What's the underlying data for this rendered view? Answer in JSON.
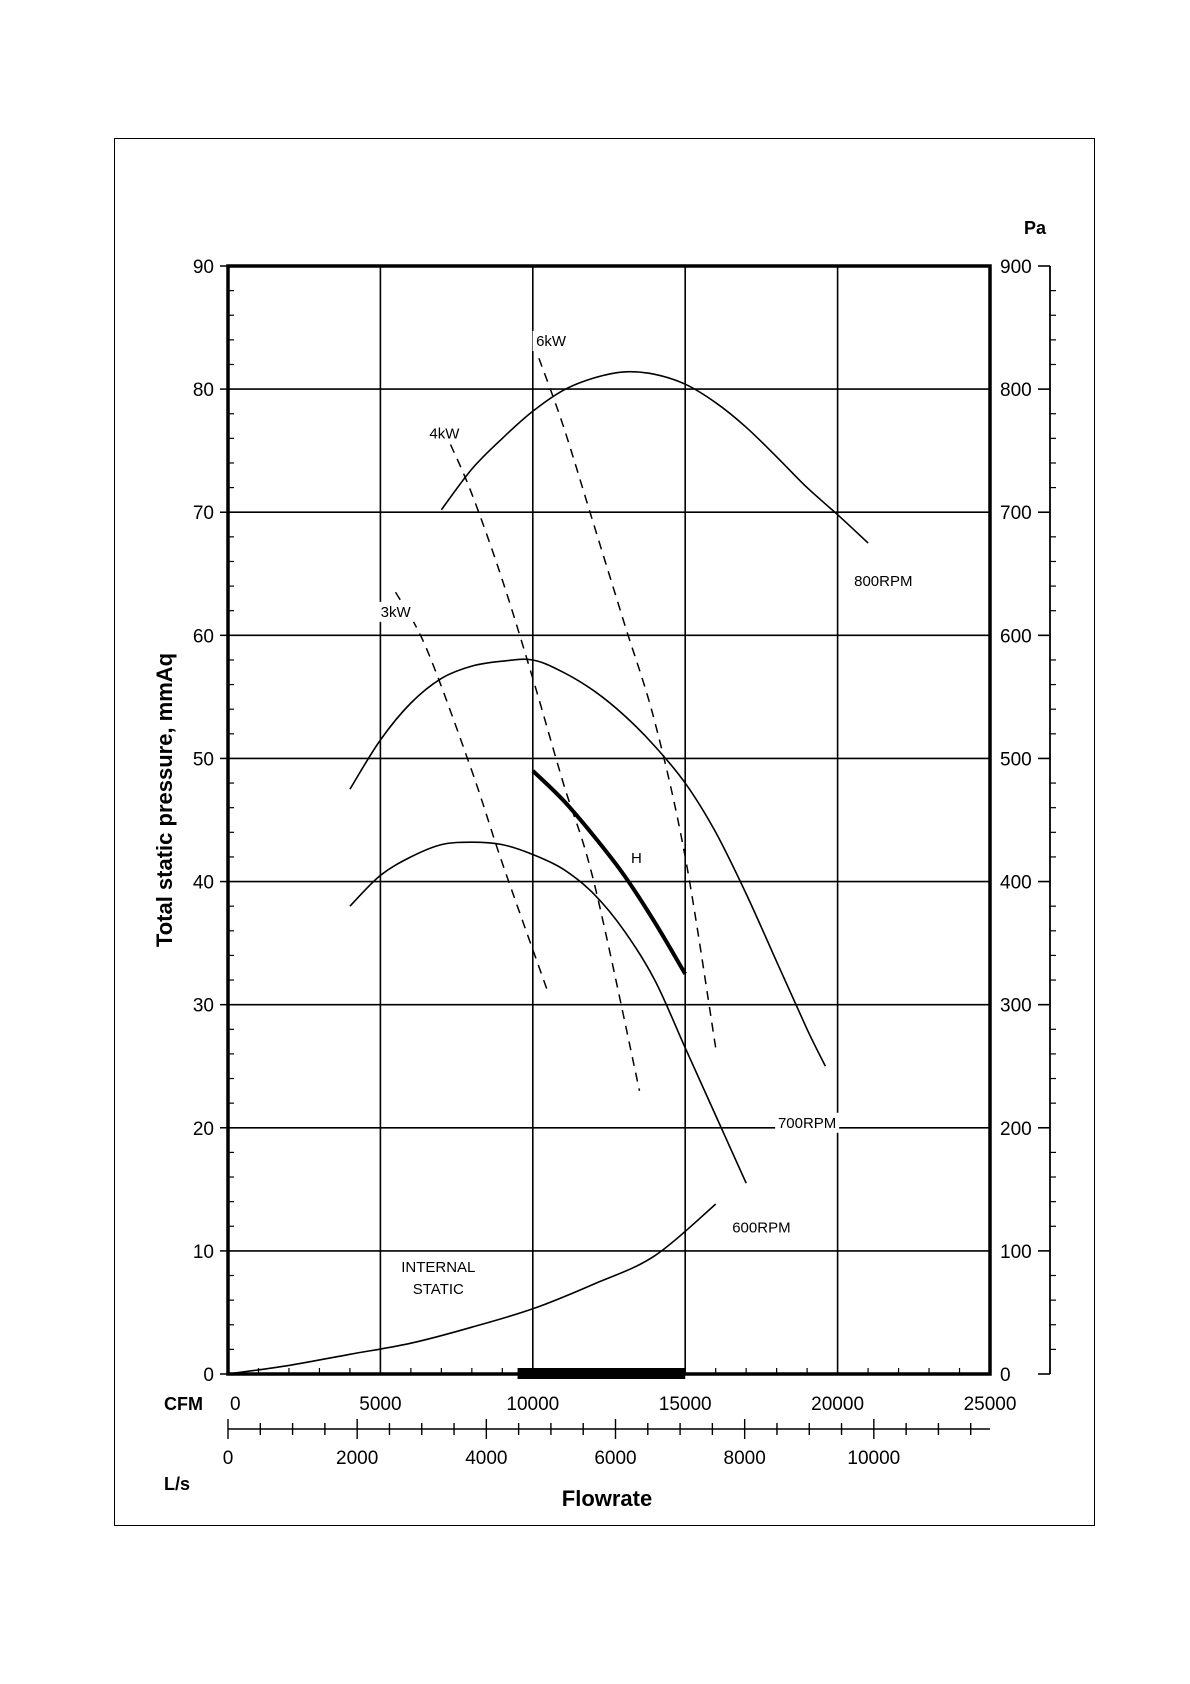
{
  "chart_data": {
    "type": "line",
    "ylabel": "Total static pressure, mmAq",
    "y2_unit": "Pa",
    "xlabel": "Flowrate",
    "x_unit_primary": "CFM",
    "x_unit_secondary": "L/s",
    "xlim_cfm": [
      0,
      25000
    ],
    "ylim": [
      0,
      90
    ],
    "y2lim": [
      0,
      900
    ],
    "x_ticks_cfm": [
      "0",
      "5000",
      "10000",
      "15000",
      "20000",
      "25000"
    ],
    "x_ticks_ls": [
      "0",
      "2000",
      "4000",
      "6000",
      "8000",
      "10000"
    ],
    "y_ticks": [
      "0",
      "10",
      "20",
      "30",
      "40",
      "50",
      "60",
      "70",
      "80",
      "90"
    ],
    "y2_ticks": [
      "0",
      "100",
      "200",
      "300",
      "400",
      "500",
      "600",
      "700",
      "800",
      "900"
    ],
    "grid": true,
    "operating_range_cfm": [
      9500,
      15000
    ],
    "series": [
      {
        "name": "800RPM",
        "style": "solid",
        "x": [
          7000,
          8000,
          9000,
          10000,
          11000,
          12000,
          13000,
          14000,
          15000,
          16000,
          17000,
          18000,
          19000,
          20000,
          21000
        ],
        "y": [
          70.2,
          73.5,
          76.0,
          78.2,
          79.9,
          80.9,
          81.4,
          81.2,
          80.4,
          78.9,
          76.9,
          74.5,
          72.0,
          69.8,
          67.5
        ]
      },
      {
        "name": "700RPM",
        "style": "solid",
        "x": [
          4000,
          5000,
          6000,
          7000,
          8000,
          9000,
          10000,
          11000,
          12000,
          13000,
          14000,
          15000,
          16000,
          17000,
          18000,
          19000,
          19600
        ],
        "y": [
          47.5,
          51.5,
          54.5,
          56.5,
          57.5,
          57.9,
          58.0,
          57.0,
          55.5,
          53.5,
          51.0,
          48.0,
          44.0,
          39.0,
          33.5,
          28.0,
          25.0
        ]
      },
      {
        "name": "600RPM",
        "style": "solid",
        "x": [
          4000,
          5000,
          6000,
          7000,
          8000,
          9000,
          10000,
          11000,
          12000,
          13000,
          14000,
          15000,
          16000,
          17000
        ],
        "y": [
          38.0,
          40.5,
          42.0,
          43.0,
          43.2,
          43.0,
          42.2,
          41.0,
          39.0,
          36.0,
          32.0,
          26.5,
          21.0,
          15.5
        ]
      },
      {
        "name": "INTERNAL STATIC",
        "style": "solid",
        "x": [
          0,
          2000,
          4000,
          6000,
          8000,
          10000,
          12000,
          14000,
          16000
        ],
        "y": [
          0,
          0.7,
          1.6,
          2.5,
          3.8,
          5.3,
          7.3,
          9.6,
          13.8
        ]
      },
      {
        "name": "H",
        "style": "bold",
        "x": [
          10000,
          11000,
          12000,
          13000,
          14000,
          15000
        ],
        "y": [
          49.0,
          46.6,
          43.7,
          40.5,
          36.7,
          32.5
        ]
      },
      {
        "name": "3kW",
        "style": "dashed",
        "x": [
          5500,
          6500,
          8000,
          9000,
          10500
        ],
        "y": [
          63.5,
          59.0,
          49.0,
          41.5,
          31.0
        ]
      },
      {
        "name": "4kW",
        "style": "dashed",
        "x": [
          7300,
          8000,
          9000,
          10000,
          11000,
          12000,
          13500
        ],
        "y": [
          75.5,
          71.5,
          64.5,
          56.5,
          48.0,
          40.0,
          23.0
        ]
      },
      {
        "name": "6kW",
        "style": "dashed",
        "x": [
          10200,
          11000,
          12000,
          13000,
          14000,
          15000,
          16000
        ],
        "y": [
          82.5,
          77.0,
          69.0,
          61.0,
          53.0,
          42.0,
          26.5
        ]
      }
    ],
    "annotations": [
      {
        "text": "3kW",
        "x": 5500,
        "y": 61.5
      },
      {
        "text": "4kW",
        "x": 7100,
        "y": 76.0
      },
      {
        "text": "6kW",
        "x": 10600,
        "y": 83.5
      },
      {
        "text": "800RPM",
        "x": 21500,
        "y": 64.0
      },
      {
        "text": "700RPM",
        "x": 19000,
        "y": 20.0
      },
      {
        "text": "600RPM",
        "x": 17500,
        "y": 11.5
      },
      {
        "text": "H",
        "x": 13400,
        "y": 41.5
      },
      {
        "text": "INTERNAL",
        "x": 6900,
        "y": 8.3
      },
      {
        "text": "STATIC",
        "x": 6900,
        "y": 6.5
      }
    ],
    "colors": {
      "line": "#000000",
      "grid": "#000000",
      "background": "#ffffff"
    }
  }
}
